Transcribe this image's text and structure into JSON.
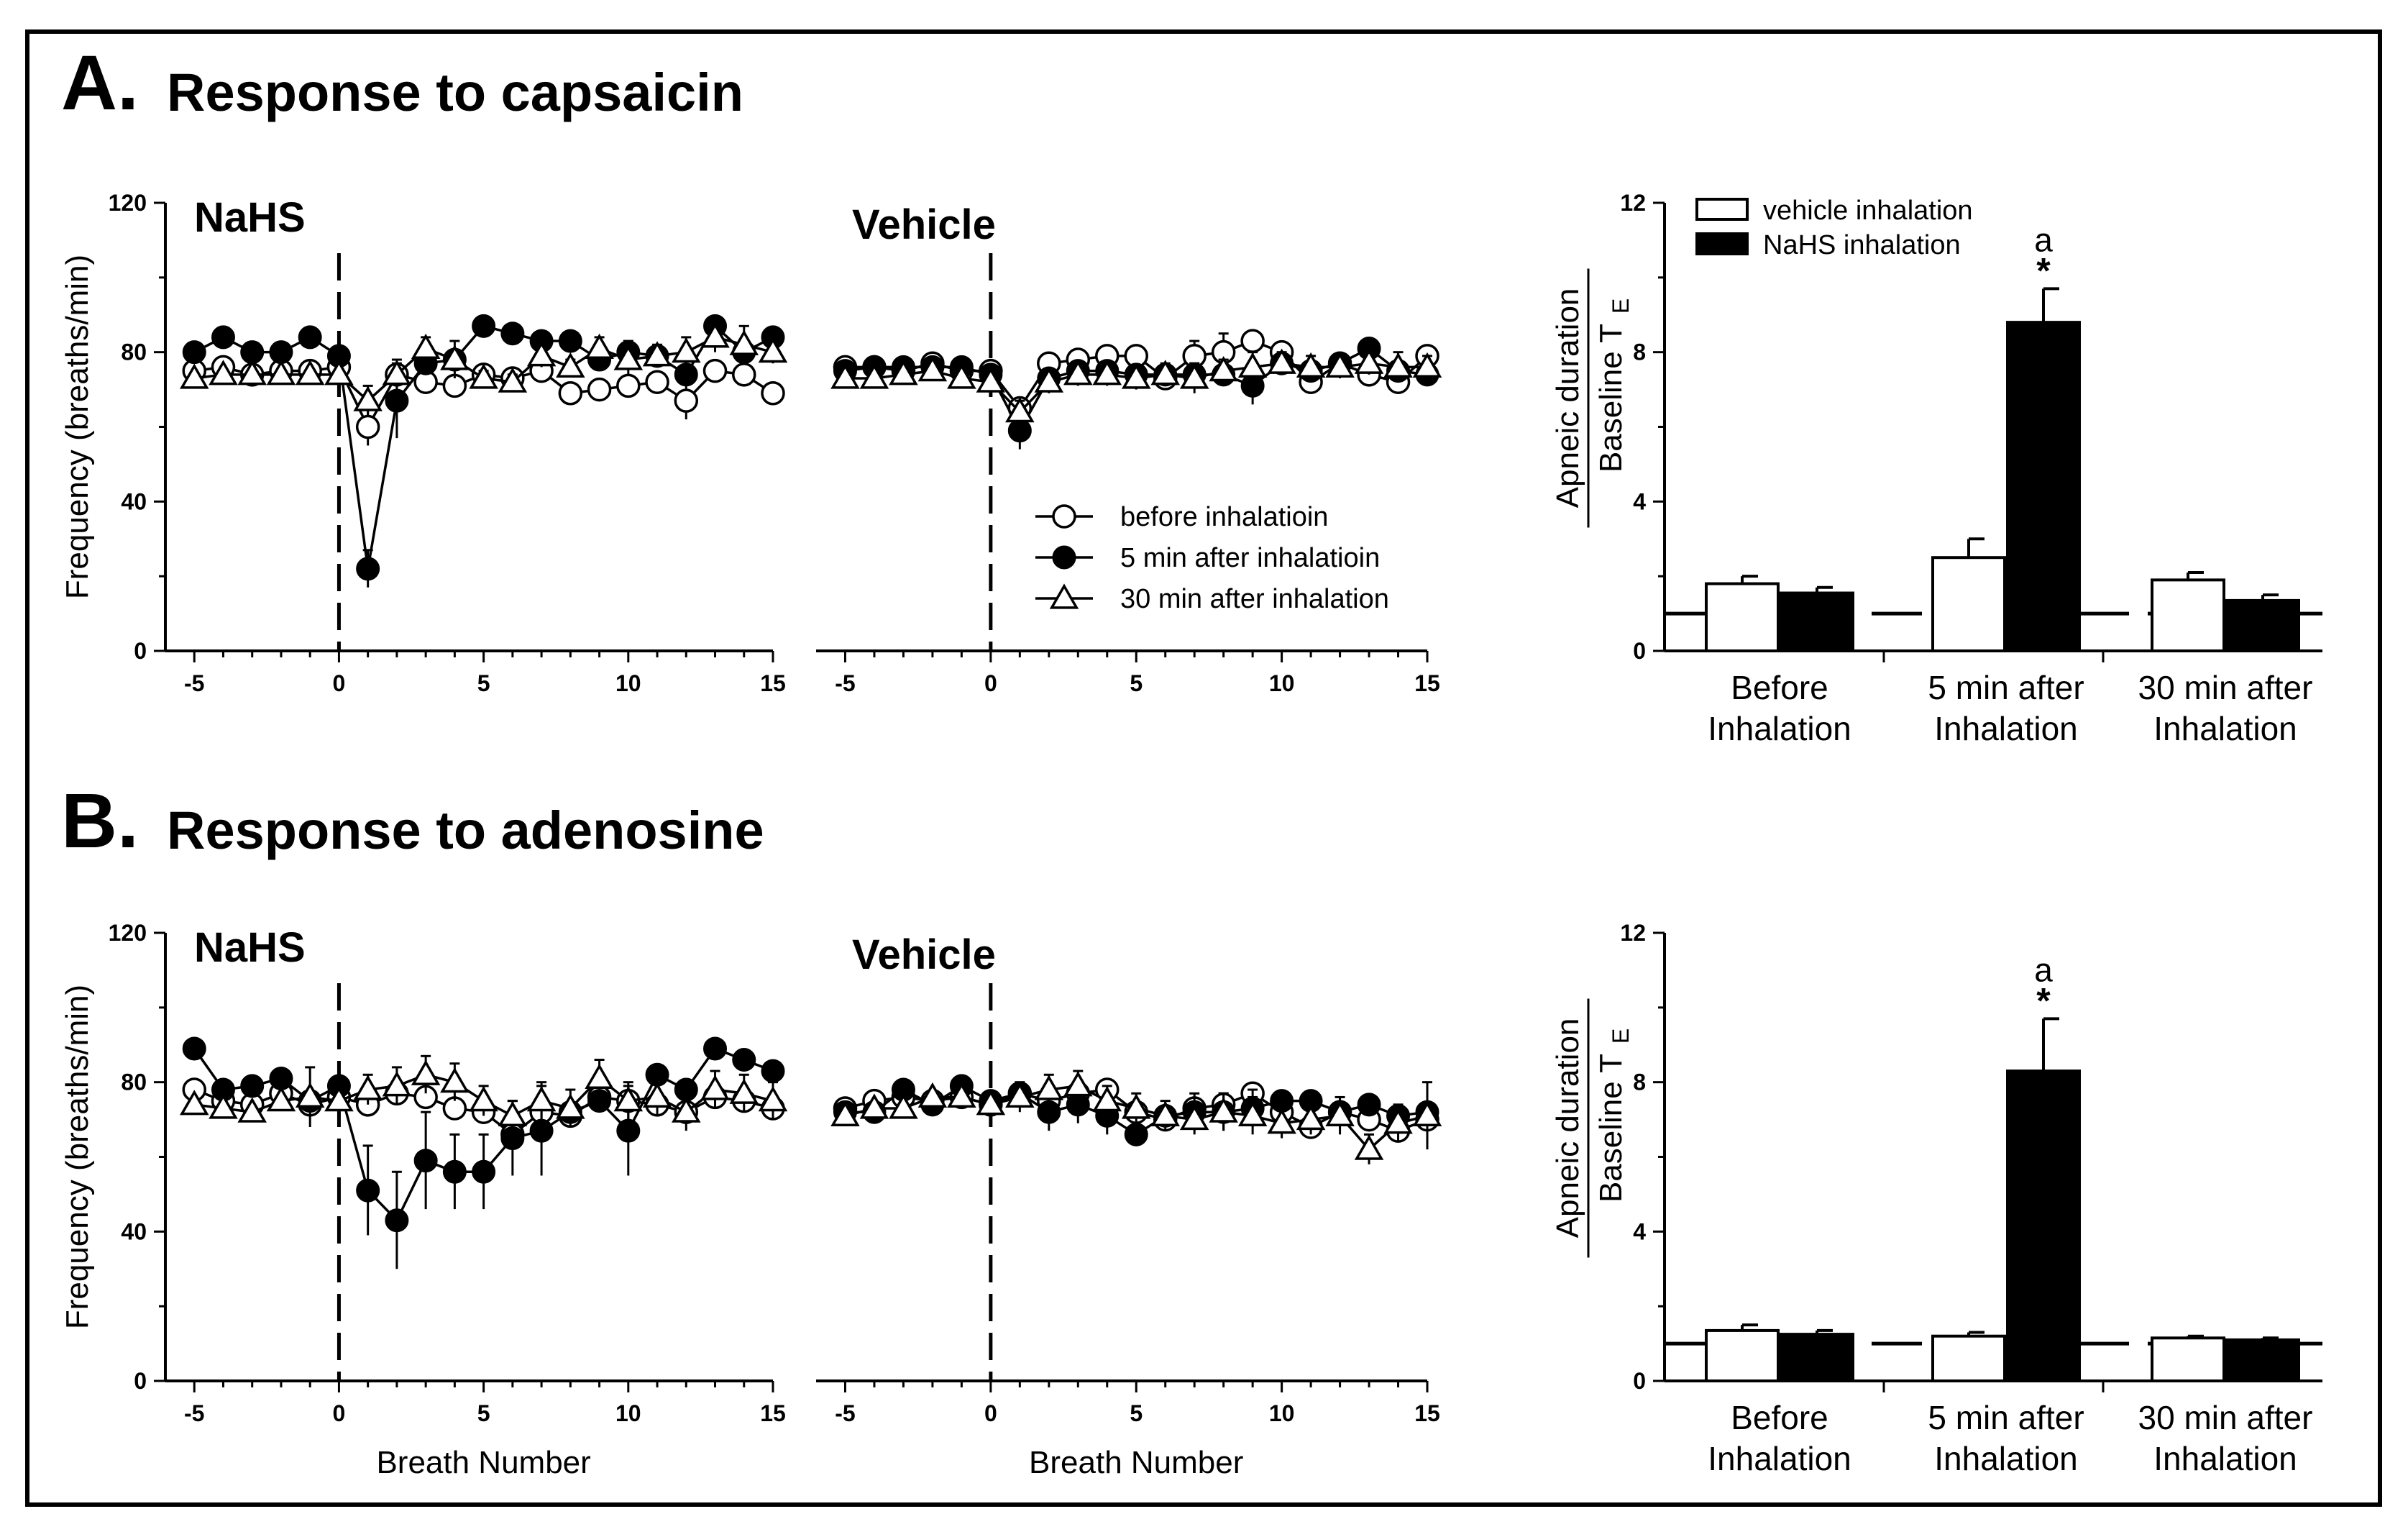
{
  "figure": {
    "rows": [
      {
        "letter": "A.",
        "title": "Response to capsaicin"
      },
      {
        "letter": "B.",
        "title": "Response to adenosine"
      }
    ]
  },
  "colors": {
    "frame": "#000000",
    "open": "#ffffff",
    "filled": "#000000"
  },
  "chart_data": [
    {
      "id": "A-nahs",
      "type": "scatter",
      "label": "NaHS",
      "ylabel": "Frequency (breaths/min)",
      "xlabel": "",
      "xlim": [
        -6,
        15
      ],
      "ylim": [
        0,
        120
      ],
      "xticks": [
        -5,
        0,
        5,
        10,
        15
      ],
      "yticks": [
        0,
        40,
        80,
        120
      ],
      "series": [
        {
          "name": "before inhalatioin",
          "marker": "circle-open",
          "x": [
            -5,
            -4,
            -3,
            -2,
            -1,
            0,
            1,
            2,
            3,
            4,
            5,
            6,
            7,
            8,
            9,
            10,
            11,
            12,
            13,
            14,
            15
          ],
          "y": [
            75,
            76,
            74,
            75,
            75,
            76,
            60,
            74,
            72,
            71,
            74,
            73,
            75,
            69,
            70,
            71,
            72,
            67,
            75,
            74,
            69
          ],
          "err": [
            0,
            0,
            0,
            0,
            0,
            0,
            5,
            0,
            0,
            0,
            0,
            0,
            0,
            0,
            0,
            0,
            0,
            5,
            0,
            0,
            0
          ]
        },
        {
          "name": "5 min after inhalatioin",
          "marker": "circle-filled",
          "x": [
            -5,
            -4,
            -3,
            -2,
            -1,
            0,
            1,
            2,
            3,
            4,
            5,
            6,
            7,
            8,
            9,
            10,
            11,
            12,
            13,
            14,
            15
          ],
          "y": [
            80,
            84,
            80,
            80,
            84,
            79,
            22,
            67,
            77,
            78,
            87,
            85,
            83,
            83,
            78,
            80,
            79,
            74,
            87,
            80,
            84
          ],
          "err": [
            0,
            0,
            0,
            0,
            0,
            0,
            5,
            10,
            0,
            0,
            0,
            0,
            0,
            0,
            0,
            3,
            0,
            0,
            0,
            0,
            0
          ]
        },
        {
          "name": "30 min after inhalation",
          "marker": "triangle-open",
          "x": [
            -5,
            -4,
            -3,
            -2,
            -1,
            0,
            1,
            2,
            3,
            4,
            5,
            6,
            7,
            8,
            9,
            10,
            11,
            12,
            13,
            14,
            15
          ],
          "y": [
            73,
            74,
            74,
            74,
            74,
            74,
            67,
            74,
            81,
            78,
            73,
            72,
            79,
            76,
            81,
            78,
            79,
            80,
            84,
            82,
            80
          ],
          "err": [
            0,
            0,
            0,
            0,
            0,
            0,
            4,
            4,
            3,
            5,
            2,
            2,
            3,
            2,
            3,
            4,
            3,
            4,
            4,
            5,
            3
          ]
        }
      ]
    },
    {
      "id": "A-vehicle",
      "type": "scatter",
      "label": "Vehicle",
      "ylabel": "",
      "xlabel": "",
      "xlim": [
        -6,
        15
      ],
      "ylim": [
        0,
        120
      ],
      "xticks": [
        -5,
        0,
        5,
        10,
        15
      ],
      "yticks": [],
      "legend": {
        "position": "bottom-right",
        "entries": [
          "before inhalatioin",
          "5 min after inhalatioin",
          "30 min after inhalation"
        ]
      },
      "series": [
        {
          "name": "before inhalatioin",
          "marker": "circle-open",
          "x": [
            -5,
            -4,
            -3,
            -2,
            -1,
            0,
            1,
            2,
            3,
            4,
            5,
            6,
            7,
            8,
            9,
            10,
            11,
            12,
            13,
            14,
            15
          ],
          "y": [
            76,
            76,
            75,
            77,
            75,
            75,
            65,
            77,
            78,
            79,
            79,
            73,
            79,
            80,
            83,
            80,
            72,
            77,
            74,
            72,
            79
          ],
          "err": [
            0,
            0,
            0,
            0,
            0,
            0,
            0,
            0,
            0,
            0,
            0,
            0,
            4,
            5,
            0,
            0,
            0,
            0,
            0,
            0,
            0
          ]
        },
        {
          "name": "5 min after inhalatioin",
          "marker": "circle-filled",
          "x": [
            -5,
            -4,
            -3,
            -2,
            -1,
            0,
            1,
            2,
            3,
            4,
            5,
            6,
            7,
            8,
            9,
            10,
            11,
            12,
            13,
            14,
            15
          ],
          "y": [
            75,
            76,
            76,
            76,
            76,
            74,
            59,
            73,
            75,
            75,
            74,
            74,
            74,
            74,
            71,
            77,
            75,
            77,
            81,
            75,
            74
          ],
          "err": [
            0,
            0,
            0,
            0,
            0,
            0,
            5,
            0,
            0,
            0,
            0,
            0,
            3,
            3,
            5,
            0,
            0,
            0,
            0,
            0,
            0
          ]
        },
        {
          "name": "30 min after inhalation",
          "marker": "triangle-open",
          "x": [
            -5,
            -4,
            -3,
            -2,
            -1,
            0,
            1,
            2,
            3,
            4,
            5,
            6,
            7,
            8,
            9,
            10,
            11,
            12,
            13,
            14,
            15
          ],
          "y": [
            73,
            73,
            74,
            75,
            73,
            72,
            64,
            72,
            74,
            74,
            73,
            74,
            73,
            75,
            76,
            77,
            76,
            76,
            77,
            76,
            76
          ],
          "err": [
            0,
            0,
            0,
            0,
            0,
            0,
            3,
            3,
            3,
            3,
            3,
            3,
            4,
            3,
            4,
            3,
            3,
            3,
            3,
            4,
            3
          ]
        }
      ]
    },
    {
      "id": "A-bars",
      "type": "bar",
      "ylabel_num": "Apneic duration",
      "ylabel_den": "Baseline T",
      "ylabel_sub": "E",
      "ylim": [
        0,
        12
      ],
      "yticks": [
        0,
        4,
        8,
        12
      ],
      "baseline": 1,
      "categories": [
        [
          "Before",
          "Inhalation"
        ],
        [
          "5 min after",
          "Inhalation"
        ],
        [
          "30 min after",
          "Inhalation"
        ]
      ],
      "legend_entries": [
        "vehicle inhalation",
        "NaHS inhalation"
      ],
      "series": [
        {
          "name": "vehicle inhalation",
          "fill": "open",
          "values": [
            1.8,
            2.5,
            1.9
          ],
          "err": [
            0.2,
            0.5,
            0.2
          ]
        },
        {
          "name": "NaHS inhalation",
          "fill": "filled",
          "values": [
            1.55,
            8.8,
            1.35
          ],
          "err": [
            0.15,
            0.9,
            0.15
          ]
        }
      ],
      "annotations": [
        {
          "category": 1,
          "series": 1,
          "text": "a",
          "star": "*"
        }
      ]
    },
    {
      "id": "B-nahs",
      "type": "scatter",
      "label": "NaHS",
      "ylabel": "Frequency (breaths/min)",
      "xlabel": "Breath Number",
      "xlim": [
        -6,
        15
      ],
      "ylim": [
        0,
        120
      ],
      "xticks": [
        -5,
        0,
        5,
        10,
        15
      ],
      "yticks": [
        0,
        40,
        80,
        120
      ],
      "series": [
        {
          "name": "before inhalatioin",
          "marker": "circle-open",
          "x": [
            -5,
            -4,
            -3,
            -2,
            -1,
            0,
            1,
            2,
            3,
            4,
            5,
            6,
            7,
            8,
            9,
            10,
            11,
            12,
            13,
            14,
            15
          ],
          "y": [
            78,
            75,
            74,
            77,
            74,
            76,
            74,
            77,
            76,
            73,
            72,
            66,
            72,
            71,
            76,
            75,
            74,
            72,
            76,
            75,
            73
          ],
          "err": [
            0,
            0,
            0,
            0,
            0,
            0,
            0,
            0,
            0,
            0,
            0,
            0,
            0,
            0,
            0,
            0,
            0,
            0,
            0,
            0,
            0
          ]
        },
        {
          "name": "5 min after inhalatioin",
          "marker": "circle-filled",
          "x": [
            -5,
            -4,
            -3,
            -2,
            -1,
            0,
            1,
            2,
            3,
            4,
            5,
            6,
            7,
            8,
            9,
            10,
            11,
            12,
            13,
            14,
            15
          ],
          "y": [
            89,
            78,
            79,
            81,
            75,
            79,
            51,
            43,
            59,
            56,
            56,
            65,
            67,
            72,
            75,
            67,
            82,
            78,
            89,
            86,
            83
          ],
          "err": [
            0,
            0,
            0,
            0,
            0,
            0,
            12,
            13,
            13,
            10,
            10,
            10,
            12,
            0,
            0,
            12,
            0,
            0,
            0,
            0,
            0
          ]
        },
        {
          "name": "30 min after inhalation",
          "marker": "triangle-open",
          "x": [
            -5,
            -4,
            -3,
            -2,
            -1,
            0,
            1,
            2,
            3,
            4,
            5,
            6,
            7,
            8,
            9,
            10,
            11,
            12,
            13,
            14,
            15
          ],
          "y": [
            74,
            73,
            72,
            75,
            76,
            75,
            78,
            79,
            82,
            80,
            75,
            71,
            75,
            73,
            81,
            75,
            76,
            72,
            78,
            77,
            75
          ],
          "err": [
            0,
            0,
            0,
            0,
            8,
            0,
            4,
            5,
            5,
            5,
            4,
            4,
            5,
            5,
            5,
            5,
            5,
            5,
            5,
            5,
            5
          ]
        }
      ]
    },
    {
      "id": "B-vehicle",
      "type": "scatter",
      "label": "Vehicle",
      "ylabel": "",
      "xlabel": "Breath Number",
      "xlim": [
        -6,
        15
      ],
      "ylim": [
        0,
        120
      ],
      "xticks": [
        -5,
        0,
        5,
        10,
        15
      ],
      "yticks": [],
      "series": [
        {
          "name": "before inhalatioin",
          "marker": "circle-open",
          "x": [
            -5,
            -4,
            -3,
            -2,
            -1,
            0,
            1,
            2,
            3,
            4,
            5,
            6,
            7,
            8,
            9,
            10,
            11,
            12,
            13,
            14,
            15
          ],
          "y": [
            73,
            75,
            76,
            75,
            76,
            74,
            77,
            75,
            77,
            78,
            72,
            70,
            73,
            74,
            77,
            72,
            68,
            72,
            70,
            67,
            70
          ],
          "err": [
            0,
            0,
            0,
            0,
            0,
            0,
            0,
            0,
            0,
            0,
            0,
            0,
            0,
            0,
            0,
            0,
            0,
            0,
            0,
            0,
            0
          ]
        },
        {
          "name": "5 min after inhalatioin",
          "marker": "circle-filled",
          "x": [
            -5,
            -4,
            -3,
            -2,
            -1,
            0,
            1,
            2,
            3,
            4,
            5,
            6,
            7,
            8,
            9,
            10,
            11,
            12,
            13,
            14,
            15
          ],
          "y": [
            72,
            72,
            78,
            74,
            79,
            75,
            77,
            72,
            74,
            71,
            66,
            71,
            72,
            72,
            73,
            75,
            75,
            72,
            74,
            71,
            72
          ],
          "err": [
            0,
            0,
            0,
            0,
            0,
            0,
            0,
            5,
            5,
            5,
            0,
            0,
            5,
            5,
            5,
            0,
            0,
            0,
            0,
            0,
            0
          ]
        },
        {
          "name": "30 min after inhalation",
          "marker": "triangle-open",
          "x": [
            -5,
            -4,
            -3,
            -2,
            -1,
            0,
            1,
            2,
            3,
            4,
            5,
            6,
            7,
            8,
            9,
            10,
            11,
            12,
            13,
            14,
            15
          ],
          "y": [
            71,
            73,
            73,
            76,
            76,
            74,
            76,
            78,
            79,
            75,
            73,
            71,
            70,
            72,
            71,
            69,
            70,
            71,
            62,
            69,
            71
          ],
          "err": [
            0,
            0,
            0,
            0,
            0,
            0,
            4,
            4,
            4,
            4,
            4,
            4,
            4,
            5,
            5,
            4,
            4,
            5,
            4,
            5,
            9
          ]
        }
      ]
    },
    {
      "id": "B-bars",
      "type": "bar",
      "ylabel_num": "Apneic duration",
      "ylabel_den": "Baseline T",
      "ylabel_sub": "E",
      "ylim": [
        0,
        12
      ],
      "yticks": [
        0,
        4,
        8,
        12
      ],
      "baseline": 1,
      "categories": [
        [
          "Before",
          "Inhalation"
        ],
        [
          "5 min after",
          "Inhalation"
        ],
        [
          "30 min after",
          "Inhalation"
        ]
      ],
      "series": [
        {
          "name": "vehicle inhalation",
          "fill": "open",
          "values": [
            1.35,
            1.2,
            1.15
          ],
          "err": [
            0.15,
            0.1,
            0.05
          ]
        },
        {
          "name": "NaHS inhalation",
          "fill": "filled",
          "values": [
            1.25,
            8.3,
            1.1
          ],
          "err": [
            0.1,
            1.4,
            0.05
          ]
        }
      ],
      "annotations": [
        {
          "category": 1,
          "series": 1,
          "text": "a",
          "star": "*"
        }
      ]
    }
  ]
}
